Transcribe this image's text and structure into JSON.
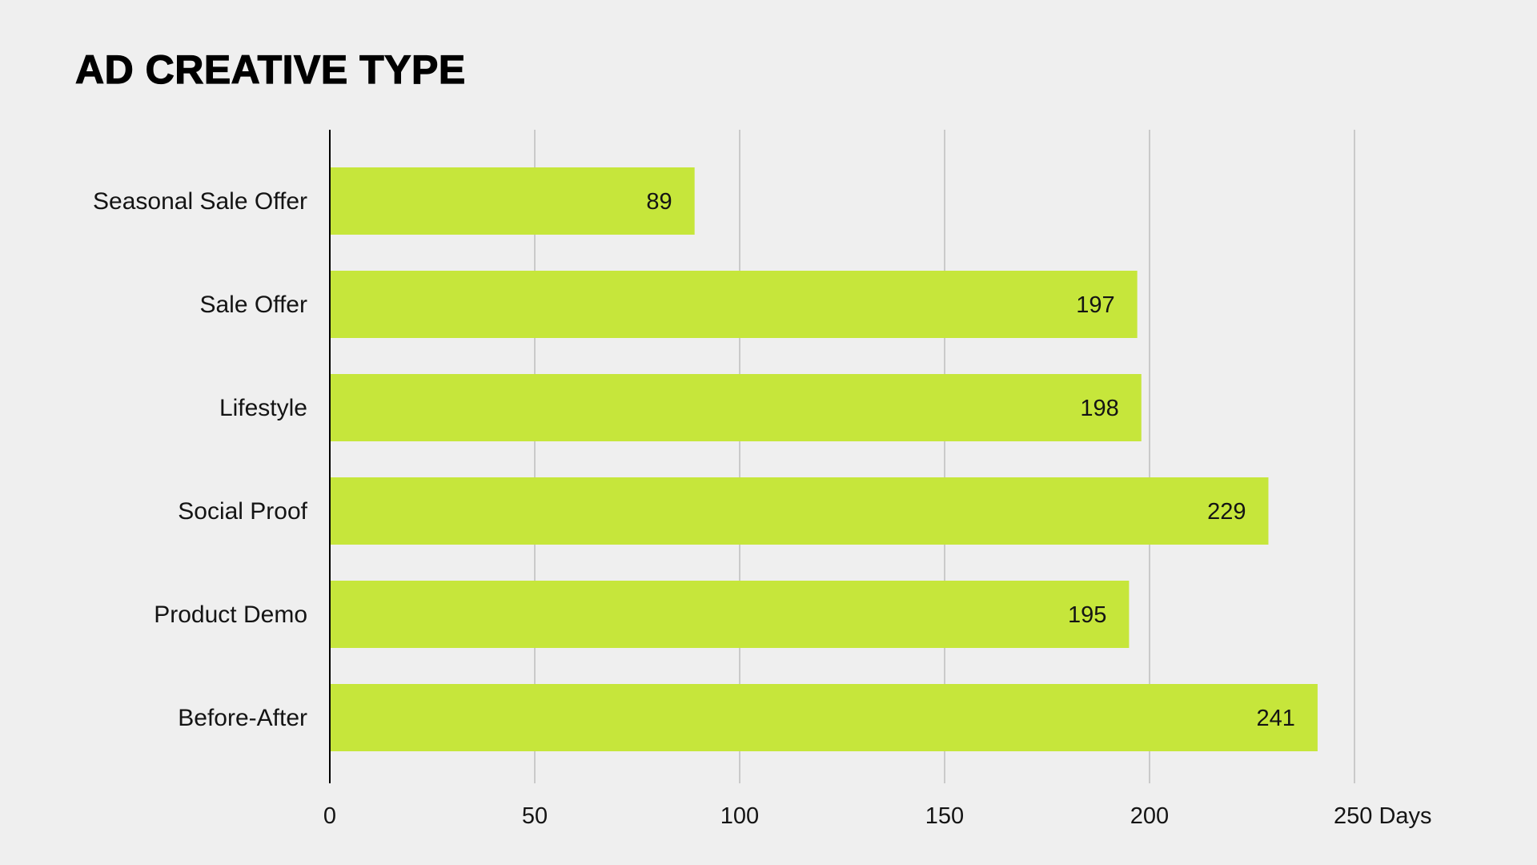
{
  "chart_data": {
    "type": "bar",
    "orientation": "horizontal",
    "title": "AD CREATIVE TYPE",
    "xlabel": "",
    "ylabel": "",
    "x_unit": "Days",
    "categories": [
      "Seasonal Sale Offer",
      "Sale Offer",
      "Lifestyle",
      "Social Proof",
      "Product Demo",
      "Before-After"
    ],
    "values": [
      89,
      197,
      198,
      229,
      195,
      241
    ],
    "xlim": [
      0,
      250
    ],
    "x_ticks": [
      0,
      50,
      100,
      150,
      200,
      250
    ],
    "grid": true,
    "data_labels": true,
    "legend": "none"
  },
  "colors": {
    "background": "#efefef",
    "bar": "#c6e63b",
    "grid": "#bdbdbd",
    "axis": "#000000",
    "text": "#141414"
  }
}
